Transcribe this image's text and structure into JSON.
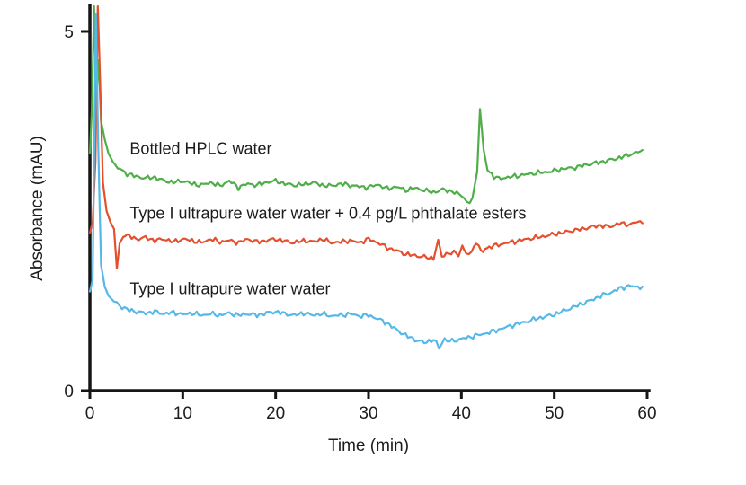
{
  "figure": {
    "background": "#ffffff",
    "axis_color": "#161616",
    "text_color": "#1c1c1c"
  },
  "chart_data": {
    "type": "line",
    "title": "",
    "xlabel": "Time (min)",
    "ylabel": "Absorbance (mAU)",
    "xlim": [
      0,
      60
    ],
    "ylim": [
      0,
      5
    ],
    "x_ticks": [
      0,
      10,
      20,
      30,
      40,
      50,
      60
    ],
    "y_ticks": [
      0,
      5
    ],
    "grid": false,
    "legend_position": "inline-annotations",
    "series": [
      {
        "name": "Bottled HPLC water",
        "color": "#4fae49",
        "points": [
          [
            0,
            3.3
          ],
          [
            0.2,
            3.9
          ],
          [
            0.45,
            5.35
          ],
          [
            0.7,
            4.1
          ],
          [
            0.95,
            4.6
          ],
          [
            1.2,
            3.75
          ],
          [
            1.6,
            3.5
          ],
          [
            2.0,
            3.3
          ],
          [
            2.5,
            3.18
          ],
          [
            3.0,
            3.1
          ],
          [
            4,
            3.02
          ],
          [
            5,
            2.98
          ],
          [
            6,
            2.96
          ],
          [
            7,
            2.97
          ],
          [
            8,
            2.92
          ],
          [
            9,
            2.9
          ],
          [
            10,
            2.92
          ],
          [
            11,
            2.88
          ],
          [
            12,
            2.86
          ],
          [
            13,
            2.9
          ],
          [
            14,
            2.85
          ],
          [
            15,
            2.92
          ],
          [
            16,
            2.83
          ],
          [
            17,
            2.88
          ],
          [
            18,
            2.86
          ],
          [
            19,
            2.9
          ],
          [
            20,
            2.92
          ],
          [
            21,
            2.88
          ],
          [
            22,
            2.86
          ],
          [
            23,
            2.87
          ],
          [
            24,
            2.9
          ],
          [
            25,
            2.86
          ],
          [
            26,
            2.85
          ],
          [
            27,
            2.88
          ],
          [
            28,
            2.86
          ],
          [
            29,
            2.84
          ],
          [
            30,
            2.83
          ],
          [
            31,
            2.87
          ],
          [
            32,
            2.81
          ],
          [
            33,
            2.84
          ],
          [
            34,
            2.79
          ],
          [
            35,
            2.82
          ],
          [
            36,
            2.79
          ],
          [
            37,
            2.76
          ],
          [
            38,
            2.8
          ],
          [
            39,
            2.77
          ],
          [
            40,
            2.72
          ],
          [
            40.6,
            2.62
          ],
          [
            41.2,
            2.66
          ],
          [
            41.7,
            3.05
          ],
          [
            42.0,
            3.92
          ],
          [
            42.4,
            3.35
          ],
          [
            42.8,
            3.08
          ],
          [
            43.5,
            2.98
          ],
          [
            44,
            2.95
          ],
          [
            45,
            2.97
          ],
          [
            46,
            2.99
          ],
          [
            47,
            3.01
          ],
          [
            48,
            3.03
          ],
          [
            49,
            3.04
          ],
          [
            50,
            3.06
          ],
          [
            51,
            3.09
          ],
          [
            52,
            3.1
          ],
          [
            53,
            3.13
          ],
          [
            54,
            3.16
          ],
          [
            55,
            3.18
          ],
          [
            56,
            3.21
          ],
          [
            57,
            3.24
          ],
          [
            58,
            3.28
          ],
          [
            59,
            3.32
          ],
          [
            59.5,
            3.35
          ]
        ]
      },
      {
        "name": "Type I ultrapure water water + 0.4 pg/L phthalate esters",
        "color": "#e4502e",
        "points": [
          [
            0,
            2.2
          ],
          [
            0.3,
            2.35
          ],
          [
            0.6,
            3.2
          ],
          [
            0.85,
            5.35
          ],
          [
            1.1,
            4.3
          ],
          [
            1.4,
            2.9
          ],
          [
            1.8,
            2.5
          ],
          [
            2.2,
            2.35
          ],
          [
            2.6,
            2.25
          ],
          [
            2.9,
            1.7
          ],
          [
            3.2,
            2.05
          ],
          [
            3.6,
            2.14
          ],
          [
            4,
            2.16
          ],
          [
            5,
            2.11
          ],
          [
            6,
            2.13
          ],
          [
            7,
            2.09
          ],
          [
            8,
            2.11
          ],
          [
            9,
            2.07
          ],
          [
            10,
            2.11
          ],
          [
            11,
            2.09
          ],
          [
            12,
            2.06
          ],
          [
            13,
            2.11
          ],
          [
            14,
            2.07
          ],
          [
            15,
            2.09
          ],
          [
            16,
            2.06
          ],
          [
            17,
            2.11
          ],
          [
            18,
            2.07
          ],
          [
            19,
            2.09
          ],
          [
            20,
            2.11
          ],
          [
            21,
            2.08
          ],
          [
            22,
            2.06
          ],
          [
            23,
            2.09
          ],
          [
            24,
            2.07
          ],
          [
            25,
            2.11
          ],
          [
            26,
            2.06
          ],
          [
            27,
            2.07
          ],
          [
            28,
            2.09
          ],
          [
            29,
            2.06
          ],
          [
            30,
            2.11
          ],
          [
            31,
            2.06
          ],
          [
            32,
            1.99
          ],
          [
            33,
            1.95
          ],
          [
            34,
            1.9
          ],
          [
            35,
            1.88
          ],
          [
            36,
            1.86
          ],
          [
            37,
            1.84
          ],
          [
            37.5,
            2.1
          ],
          [
            37.9,
            1.87
          ],
          [
            38.6,
            1.9
          ],
          [
            39.2,
            1.93
          ],
          [
            39.7,
            1.87
          ],
          [
            40.1,
            2.02
          ],
          [
            40.5,
            1.9
          ],
          [
            41.1,
            1.93
          ],
          [
            41.6,
            2.06
          ],
          [
            42.1,
            1.95
          ],
          [
            43,
            2.0
          ],
          [
            44,
            2.03
          ],
          [
            45,
            2.06
          ],
          [
            46,
            2.08
          ],
          [
            47,
            2.11
          ],
          [
            48,
            2.13
          ],
          [
            49,
            2.15
          ],
          [
            50,
            2.18
          ],
          [
            51,
            2.2
          ],
          [
            52,
            2.23
          ],
          [
            53,
            2.25
          ],
          [
            54,
            2.28
          ],
          [
            55,
            2.3
          ],
          [
            56,
            2.28
          ],
          [
            57,
            2.33
          ],
          [
            58,
            2.31
          ],
          [
            59,
            2.35
          ],
          [
            59.5,
            2.33
          ]
        ]
      },
      {
        "name": "Type I ultrapure water water",
        "color": "#55b8e6",
        "points": [
          [
            0,
            1.38
          ],
          [
            0.3,
            1.55
          ],
          [
            0.65,
            5.25
          ],
          [
            0.9,
            3.4
          ],
          [
            1.2,
            1.75
          ],
          [
            1.6,
            1.45
          ],
          [
            2.0,
            1.32
          ],
          [
            2.6,
            1.24
          ],
          [
            3.2,
            1.18
          ],
          [
            4,
            1.13
          ],
          [
            5,
            1.1
          ],
          [
            6,
            1.08
          ],
          [
            7,
            1.1
          ],
          [
            8,
            1.07
          ],
          [
            9,
            1.09
          ],
          [
            10,
            1.06
          ],
          [
            11,
            1.08
          ],
          [
            12,
            1.05
          ],
          [
            13,
            1.07
          ],
          [
            14,
            1.05
          ],
          [
            15,
            1.08
          ],
          [
            16,
            1.05
          ],
          [
            17,
            1.07
          ],
          [
            18,
            1.05
          ],
          [
            19,
            1.08
          ],
          [
            20,
            1.1
          ],
          [
            21,
            1.07
          ],
          [
            22,
            1.05
          ],
          [
            23,
            1.08
          ],
          [
            24,
            1.05
          ],
          [
            25,
            1.07
          ],
          [
            26,
            1.04
          ],
          [
            27,
            1.05
          ],
          [
            28,
            1.07
          ],
          [
            29,
            1.04
          ],
          [
            30,
            1.05
          ],
          [
            31,
            1.0
          ],
          [
            32,
            0.94
          ],
          [
            33,
            0.85
          ],
          [
            34,
            0.77
          ],
          [
            35,
            0.71
          ],
          [
            36,
            0.67
          ],
          [
            37,
            0.71
          ],
          [
            37.6,
            0.61
          ],
          [
            38.2,
            0.71
          ],
          [
            39,
            0.69
          ],
          [
            40,
            0.72
          ],
          [
            41,
            0.75
          ],
          [
            42,
            0.78
          ],
          [
            43,
            0.81
          ],
          [
            44,
            0.85
          ],
          [
            45,
            0.89
          ],
          [
            46,
            0.93
          ],
          [
            47,
            0.96
          ],
          [
            48,
            1.0
          ],
          [
            49,
            1.03
          ],
          [
            50,
            1.06
          ],
          [
            51,
            1.11
          ],
          [
            52,
            1.16
          ],
          [
            53,
            1.21
          ],
          [
            54,
            1.26
          ],
          [
            55,
            1.32
          ],
          [
            56,
            1.36
          ],
          [
            57,
            1.42
          ],
          [
            58,
            1.46
          ],
          [
            59,
            1.44
          ],
          [
            59.5,
            1.45
          ]
        ]
      }
    ],
    "annotations": [
      {
        "text": "Bottled HPLC water",
        "x": 4.3,
        "y": 3.35
      },
      {
        "text": "Type I ultrapure water water + 0.4 pg/L phthalate esters",
        "x": 4.3,
        "y": 2.45
      },
      {
        "text": "Type I ultrapure water water",
        "x": 4.3,
        "y": 1.4
      }
    ]
  }
}
